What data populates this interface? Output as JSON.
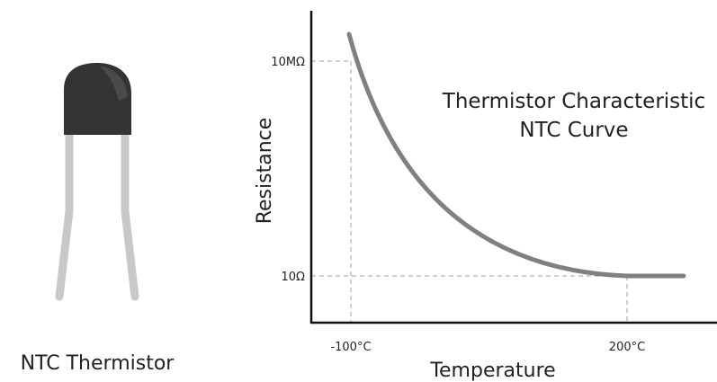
{
  "component": {
    "label": "NTC Thermistor",
    "body_color": "#333333",
    "lead_color": "#c8c8c8"
  },
  "chart": {
    "title_line1": "Thermistor Characteristic",
    "title_line2": "NTC Curve",
    "xlabel": "Temperature",
    "ylabel": "Resistance",
    "x_ticks": [
      "-100°C",
      "200°C"
    ],
    "y_ticks": [
      "10MΩ",
      "10Ω"
    ],
    "curve_color": "#808080",
    "axis_color": "#111111",
    "guide_color": "#b0b0b0"
  }
}
